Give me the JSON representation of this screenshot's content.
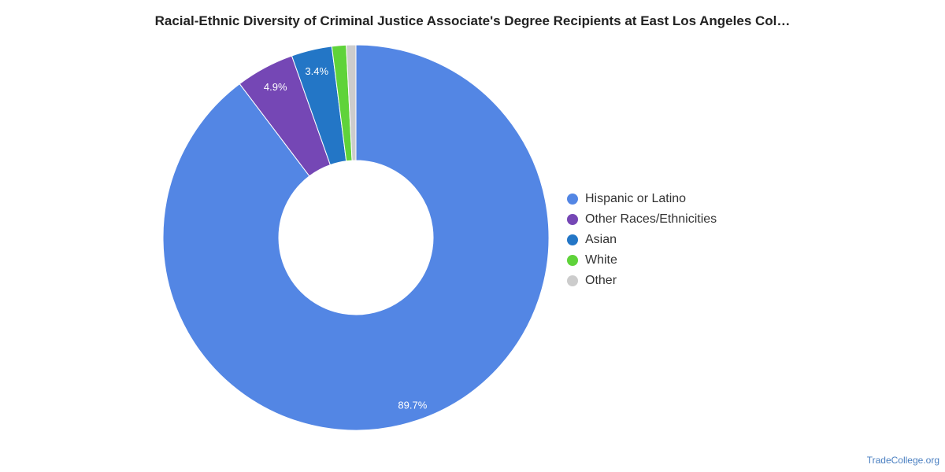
{
  "chart_data": {
    "type": "pie",
    "title": "Racial-Ethnic Diversity of Criminal Justice Associate's Degree Recipients at East Los Angeles Col…",
    "donut": true,
    "legend_position": "right",
    "slices": [
      {
        "name": "Hispanic or Latino",
        "value": 89.7,
        "label": "89.7%",
        "color": "#5386e4"
      },
      {
        "name": "Other Races/Ethnicities",
        "value": 4.9,
        "label": "4.9%",
        "color": "#7547b5"
      },
      {
        "name": "Asian",
        "value": 3.4,
        "label": "3.4%",
        "color": "#2376c6"
      },
      {
        "name": "White",
        "value": 1.2,
        "label": "",
        "color": "#5fd33a"
      },
      {
        "name": "Other",
        "value": 0.8,
        "label": "",
        "color": "#cccccc"
      }
    ]
  },
  "watermark": "TradeCollege.org"
}
